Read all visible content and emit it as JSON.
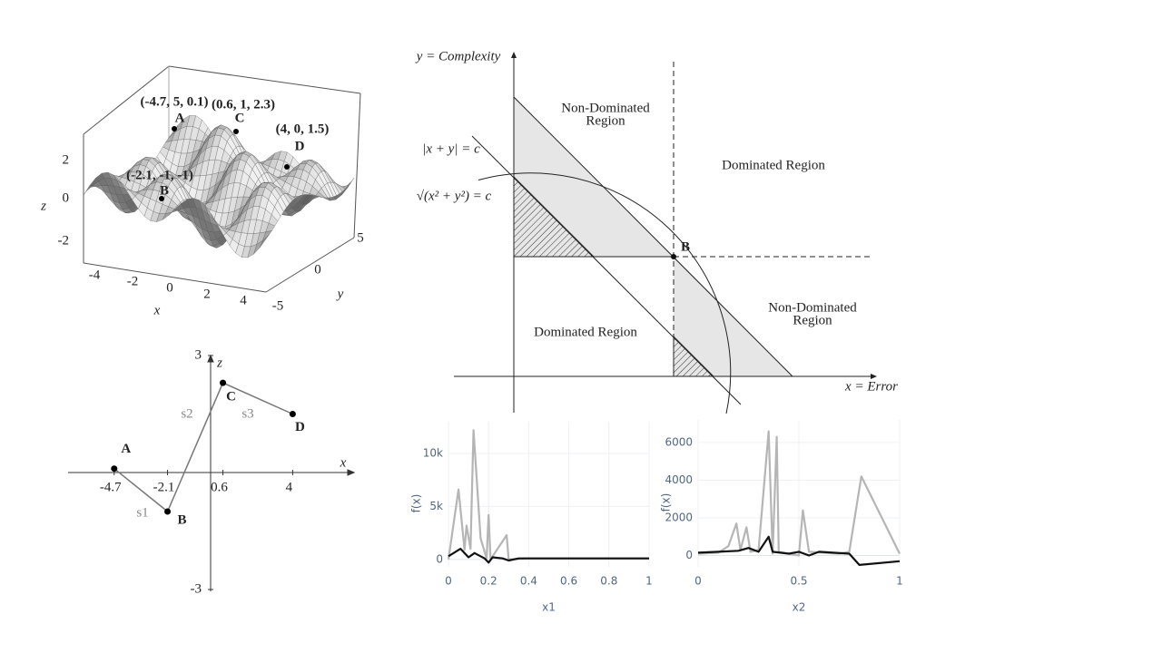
{
  "surface_plot": {
    "x_label": "x",
    "y_label": "y",
    "z_label": "z",
    "x_ticks": [
      -4,
      -2,
      0,
      2,
      4
    ],
    "y_ticks": [
      5,
      0,
      -5
    ],
    "z_ticks": [
      2,
      0,
      -2
    ],
    "points": [
      {
        "label": "A",
        "coordinates": "(-4.7, 5, 0.1)"
      },
      {
        "label": "C",
        "coordinates": "(0.6, 1, 2.3)"
      },
      {
        "label": "D",
        "coordinates": "(4, 0, 1.5)"
      },
      {
        "label": "B",
        "coordinates": "(-2.1, -1, -1)"
      }
    ]
  },
  "segment_plot": {
    "x_label": "x",
    "z_label": "z",
    "x_ticks": [
      -4.7,
      -2.1,
      0.6,
      4
    ],
    "z_ticks": [
      3,
      -3
    ],
    "points": [
      {
        "label": "A",
        "x": -4.7,
        "z": 0.1
      },
      {
        "label": "B",
        "x": -2.1,
        "z": -1
      },
      {
        "label": "C",
        "x": 0.6,
        "z": 2.3
      },
      {
        "label": "D",
        "x": 4,
        "z": 1.5
      }
    ],
    "segment_labels": [
      "s1",
      "s2",
      "s3"
    ]
  },
  "pareto_diagram": {
    "y_axis_label": "y = Complexity",
    "x_axis_label": "x = Error",
    "line_label": "|x + y| = c",
    "circle_label": "√(x² + y²) = c",
    "upper_non_dominated": [
      "Non-Dominated",
      "Region"
    ],
    "upper_dominated": "Dominated Region",
    "lower_non_dominated": [
      "Non-Dominated",
      "Region"
    ],
    "lower_dominated": "Dominated Region",
    "point_label": "B"
  },
  "chart_data": [
    {
      "type": "line",
      "x_label": "x1",
      "y_label": "f(x)",
      "grid": true,
      "xlim": [
        0,
        1
      ],
      "ylim": [
        -700,
        13000
      ],
      "xticks": [
        0,
        0.2,
        0.4,
        0.6,
        0.8,
        1
      ],
      "yticks": [
        0,
        {
          "value": 5000,
          "label": "5k"
        },
        {
          "value": 10000,
          "label": "10k"
        }
      ],
      "series": [
        {
          "color": "#b5b5b5",
          "x": [
            0,
            0.05,
            0.08,
            0.09,
            0.11,
            0.125,
            0.16,
            0.19,
            0.2,
            0.21,
            0.29,
            0.3,
            0.4,
            0.6,
            1
          ],
          "values": [
            0,
            6600,
            900,
            3200,
            1000,
            12200,
            2000,
            100,
            4200,
            0,
            2300,
            0,
            100,
            100,
            100
          ]
        },
        {
          "color": "#111111",
          "x": [
            0,
            0.06,
            0.1,
            0.13,
            0.18,
            0.2,
            0.22,
            0.27,
            0.3,
            0.35,
            0.6,
            1
          ],
          "values": [
            300,
            1000,
            200,
            600,
            100,
            -300,
            200,
            100,
            -100,
            100,
            100,
            100
          ]
        }
      ]
    },
    {
      "type": "line",
      "x_label": "x2",
      "y_label": "f(x)",
      "grid": true,
      "xlim": [
        0,
        1
      ],
      "ylim": [
        -600,
        7200
      ],
      "xticks": [
        0,
        0.5,
        1
      ],
      "yticks": [
        0,
        2000,
        4000,
        6000
      ],
      "series": [
        {
          "color": "#b5b5b5",
          "x": [
            0,
            0.1,
            0.15,
            0.19,
            0.21,
            0.24,
            0.26,
            0.3,
            0.35,
            0.37,
            0.39,
            0.4,
            0.45,
            0.5,
            0.52,
            0.55,
            0.7,
            0.75,
            0.81,
            1
          ],
          "values": [
            100,
            150,
            500,
            1700,
            300,
            1500,
            200,
            300,
            6600,
            100,
            6300,
            200,
            100,
            0,
            2400,
            200,
            100,
            200,
            4200,
            100
          ]
        },
        {
          "color": "#111111",
          "x": [
            0,
            0.1,
            0.2,
            0.25,
            0.3,
            0.35,
            0.37,
            0.45,
            0.5,
            0.55,
            0.6,
            0.75,
            0.8,
            1
          ],
          "values": [
            150,
            200,
            250,
            400,
            200,
            1000,
            200,
            100,
            200,
            0,
            200,
            100,
            -500,
            -300
          ]
        }
      ]
    }
  ]
}
